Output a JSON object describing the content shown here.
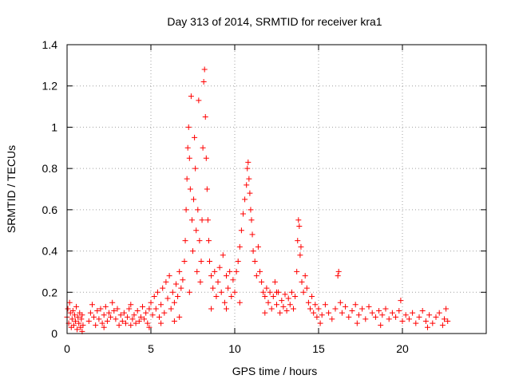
{
  "chart_data": {
    "type": "scatter",
    "title": "Day 313 of 2014, SRMTID for receiver kra1",
    "xlabel": "GPS time / hours",
    "ylabel": "SRMTID / TECUs",
    "xlim": [
      0,
      25
    ],
    "ylim": [
      0,
      1.4
    ],
    "xticks": [
      0,
      5,
      10,
      15,
      20
    ],
    "yticks": [
      0,
      0.2,
      0.4,
      0.6,
      0.8,
      1,
      1.2,
      1.4
    ],
    "xtick_labels": [
      "0",
      "5",
      "10",
      "15",
      "20"
    ],
    "ytick_labels": [
      "0",
      "0.2",
      "0.4",
      "0.6",
      "0.8",
      "1",
      "1.2",
      "1.4"
    ],
    "grid": true,
    "marker": "plus",
    "color": "#ff0000",
    "series": [
      {
        "name": "SRMTID",
        "points": [
          [
            0.0,
            0.08
          ],
          [
            0.05,
            0.12
          ],
          [
            0.1,
            0.05
          ],
          [
            0.15,
            0.15
          ],
          [
            0.2,
            0.1
          ],
          [
            0.25,
            0.03
          ],
          [
            0.3,
            0.07
          ],
          [
            0.35,
            0.11
          ],
          [
            0.4,
            0.04
          ],
          [
            0.45,
            0.09
          ],
          [
            0.5,
            0.06
          ],
          [
            0.55,
            0.13
          ],
          [
            0.6,
            0.02
          ],
          [
            0.65,
            0.08
          ],
          [
            0.7,
            0.05
          ],
          [
            0.75,
            0.1
          ],
          [
            0.8,
            0.03
          ],
          [
            0.85,
            0.07
          ],
          [
            0.9,
            0.09
          ],
          [
            0.95,
            0.04
          ],
          [
            1.3,
            0.06
          ],
          [
            1.4,
            0.1
          ],
          [
            1.5,
            0.14
          ],
          [
            1.6,
            0.08
          ],
          [
            1.7,
            0.04
          ],
          [
            1.8,
            0.11
          ],
          [
            1.9,
            0.07
          ],
          [
            2.0,
            0.12
          ],
          [
            2.1,
            0.05
          ],
          [
            2.2,
            0.09
          ],
          [
            2.3,
            0.13
          ],
          [
            2.4,
            0.06
          ],
          [
            2.5,
            0.1
          ],
          [
            2.6,
            0.08
          ],
          [
            2.7,
            0.15
          ],
          [
            2.8,
            0.11
          ],
          [
            2.9,
            0.07
          ],
          [
            3.0,
            0.12
          ],
          [
            3.1,
            0.04
          ],
          [
            3.2,
            0.09
          ],
          [
            3.3,
            0.06
          ],
          [
            3.4,
            0.1
          ],
          [
            3.5,
            0.05
          ],
          [
            3.6,
            0.08
          ],
          [
            3.7,
            0.12
          ],
          [
            3.8,
            0.04
          ],
          [
            3.9,
            0.07
          ],
          [
            4.0,
            0.09
          ],
          [
            4.1,
            0.05
          ],
          [
            4.2,
            0.11
          ],
          [
            4.3,
            0.06
          ],
          [
            4.4,
            0.08
          ],
          [
            4.5,
            0.13
          ],
          [
            4.6,
            0.07
          ],
          [
            4.7,
            0.1
          ],
          [
            4.8,
            0.05
          ],
          [
            4.9,
            0.12
          ],
          [
            5.0,
            0.15
          ],
          [
            5.1,
            0.09
          ],
          [
            5.2,
            0.18
          ],
          [
            5.3,
            0.12
          ],
          [
            5.4,
            0.2
          ],
          [
            5.5,
            0.08
          ],
          [
            5.6,
            0.14
          ],
          [
            5.7,
            0.22
          ],
          [
            5.8,
            0.1
          ],
          [
            5.9,
            0.25
          ],
          [
            6.0,
            0.17
          ],
          [
            6.1,
            0.28
          ],
          [
            6.2,
            0.12
          ],
          [
            6.3,
            0.2
          ],
          [
            6.4,
            0.15
          ],
          [
            6.5,
            0.24
          ],
          [
            6.6,
            0.18
          ],
          [
            6.7,
            0.3
          ],
          [
            6.8,
            0.22
          ],
          [
            6.9,
            0.26
          ],
          [
            7.0,
            0.35
          ],
          [
            7.05,
            0.45
          ],
          [
            7.1,
            0.6
          ],
          [
            7.15,
            0.75
          ],
          [
            7.2,
            0.9
          ],
          [
            7.25,
            1.0
          ],
          [
            7.3,
            0.85
          ],
          [
            7.35,
            0.7
          ],
          [
            7.4,
            1.15
          ],
          [
            7.45,
            0.55
          ],
          [
            7.5,
            0.4
          ],
          [
            7.55,
            0.65
          ],
          [
            7.6,
            0.95
          ],
          [
            7.65,
            0.8
          ],
          [
            7.7,
            0.5
          ],
          [
            7.75,
            0.3
          ],
          [
            7.8,
            0.6
          ],
          [
            7.85,
            1.13
          ],
          [
            7.9,
            0.45
          ],
          [
            7.95,
            0.25
          ],
          [
            8.0,
            0.35
          ],
          [
            8.05,
            0.55
          ],
          [
            8.1,
            0.9
          ],
          [
            8.15,
            1.22
          ],
          [
            8.2,
            1.28
          ],
          [
            8.25,
            1.05
          ],
          [
            8.3,
            0.85
          ],
          [
            8.35,
            0.7
          ],
          [
            8.4,
            0.55
          ],
          [
            8.45,
            0.45
          ],
          [
            8.5,
            0.35
          ],
          [
            8.6,
            0.28
          ],
          [
            8.7,
            0.22
          ],
          [
            8.8,
            0.3
          ],
          [
            8.9,
            0.18
          ],
          [
            9.0,
            0.25
          ],
          [
            9.1,
            0.32
          ],
          [
            9.2,
            0.2
          ],
          [
            9.3,
            0.38
          ],
          [
            9.4,
            0.15
          ],
          [
            9.5,
            0.28
          ],
          [
            9.6,
            0.22
          ],
          [
            9.7,
            0.3
          ],
          [
            9.8,
            0.18
          ],
          [
            9.9,
            0.26
          ],
          [
            10.0,
            0.2
          ],
          [
            10.1,
            0.3
          ],
          [
            10.2,
            0.35
          ],
          [
            10.3,
            0.42
          ],
          [
            10.4,
            0.5
          ],
          [
            10.5,
            0.58
          ],
          [
            10.6,
            0.65
          ],
          [
            10.7,
            0.72
          ],
          [
            10.75,
            0.8
          ],
          [
            10.8,
            0.83
          ],
          [
            10.85,
            0.75
          ],
          [
            10.9,
            0.68
          ],
          [
            10.95,
            0.6
          ],
          [
            11.0,
            0.55
          ],
          [
            11.05,
            0.48
          ],
          [
            11.1,
            0.4
          ],
          [
            11.2,
            0.35
          ],
          [
            11.3,
            0.28
          ],
          [
            11.4,
            0.42
          ],
          [
            11.5,
            0.3
          ],
          [
            11.6,
            0.25
          ],
          [
            11.7,
            0.2
          ],
          [
            11.8,
            0.18
          ],
          [
            11.9,
            0.22
          ],
          [
            12.0,
            0.15
          ],
          [
            12.1,
            0.2
          ],
          [
            12.2,
            0.12
          ],
          [
            12.3,
            0.18
          ],
          [
            12.4,
            0.25
          ],
          [
            12.5,
            0.14
          ],
          [
            12.6,
            0.2
          ],
          [
            12.7,
            0.1
          ],
          [
            12.8,
            0.16
          ],
          [
            12.9,
            0.13
          ],
          [
            13.0,
            0.19
          ],
          [
            13.1,
            0.11
          ],
          [
            13.2,
            0.17
          ],
          [
            13.3,
            0.14
          ],
          [
            13.4,
            0.2
          ],
          [
            13.5,
            0.12
          ],
          [
            13.6,
            0.18
          ],
          [
            13.7,
            0.3
          ],
          [
            13.75,
            0.45
          ],
          [
            13.8,
            0.55
          ],
          [
            13.85,
            0.52
          ],
          [
            13.9,
            0.38
          ],
          [
            13.95,
            0.42
          ],
          [
            14.0,
            0.25
          ],
          [
            14.1,
            0.2
          ],
          [
            14.2,
            0.28
          ],
          [
            14.3,
            0.22
          ],
          [
            14.4,
            0.15
          ],
          [
            14.5,
            0.12
          ],
          [
            14.6,
            0.18
          ],
          [
            14.7,
            0.1
          ],
          [
            14.8,
            0.14
          ],
          [
            14.9,
            0.08
          ],
          [
            15.0,
            0.12
          ],
          [
            15.2,
            0.09
          ],
          [
            15.4,
            0.14
          ],
          [
            15.6,
            0.1
          ],
          [
            15.8,
            0.07
          ],
          [
            16.0,
            0.12
          ],
          [
            16.15,
            0.28
          ],
          [
            16.2,
            0.3
          ],
          [
            16.3,
            0.15
          ],
          [
            16.4,
            0.1
          ],
          [
            16.6,
            0.13
          ],
          [
            16.8,
            0.08
          ],
          [
            17.0,
            0.11
          ],
          [
            17.2,
            0.14
          ],
          [
            17.4,
            0.09
          ],
          [
            17.6,
            0.12
          ],
          [
            17.8,
            0.07
          ],
          [
            18.0,
            0.13
          ],
          [
            18.2,
            0.1
          ],
          [
            18.4,
            0.08
          ],
          [
            18.6,
            0.11
          ],
          [
            18.8,
            0.09
          ],
          [
            19.0,
            0.12
          ],
          [
            19.2,
            0.07
          ],
          [
            19.4,
            0.1
          ],
          [
            19.6,
            0.08
          ],
          [
            19.8,
            0.11
          ],
          [
            19.9,
            0.16
          ],
          [
            20.0,
            0.06
          ],
          [
            20.2,
            0.09
          ],
          [
            20.4,
            0.07
          ],
          [
            20.6,
            0.1
          ],
          [
            20.8,
            0.05
          ],
          [
            21.0,
            0.08
          ],
          [
            21.2,
            0.11
          ],
          [
            21.4,
            0.06
          ],
          [
            21.6,
            0.09
          ],
          [
            21.8,
            0.05
          ],
          [
            22.0,
            0.08
          ],
          [
            22.2,
            0.1
          ],
          [
            22.4,
            0.04
          ],
          [
            22.5,
            0.07
          ],
          [
            22.6,
            0.12
          ],
          [
            22.7,
            0.06
          ],
          [
            6.4,
            0.06
          ],
          [
            5.6,
            0.05
          ],
          [
            4.9,
            0.03
          ],
          [
            9.5,
            0.12
          ],
          [
            10.3,
            0.15
          ],
          [
            11.8,
            0.1
          ],
          [
            12.5,
            0.2
          ],
          [
            15.1,
            0.05
          ],
          [
            17.3,
            0.05
          ],
          [
            18.7,
            0.04
          ],
          [
            21.5,
            0.03
          ],
          [
            3.8,
            0.14
          ],
          [
            2.2,
            0.03
          ],
          [
            0.9,
            0.01
          ],
          [
            8.6,
            0.12
          ],
          [
            7.3,
            0.2
          ],
          [
            6.7,
            0.08
          ]
        ]
      }
    ]
  }
}
